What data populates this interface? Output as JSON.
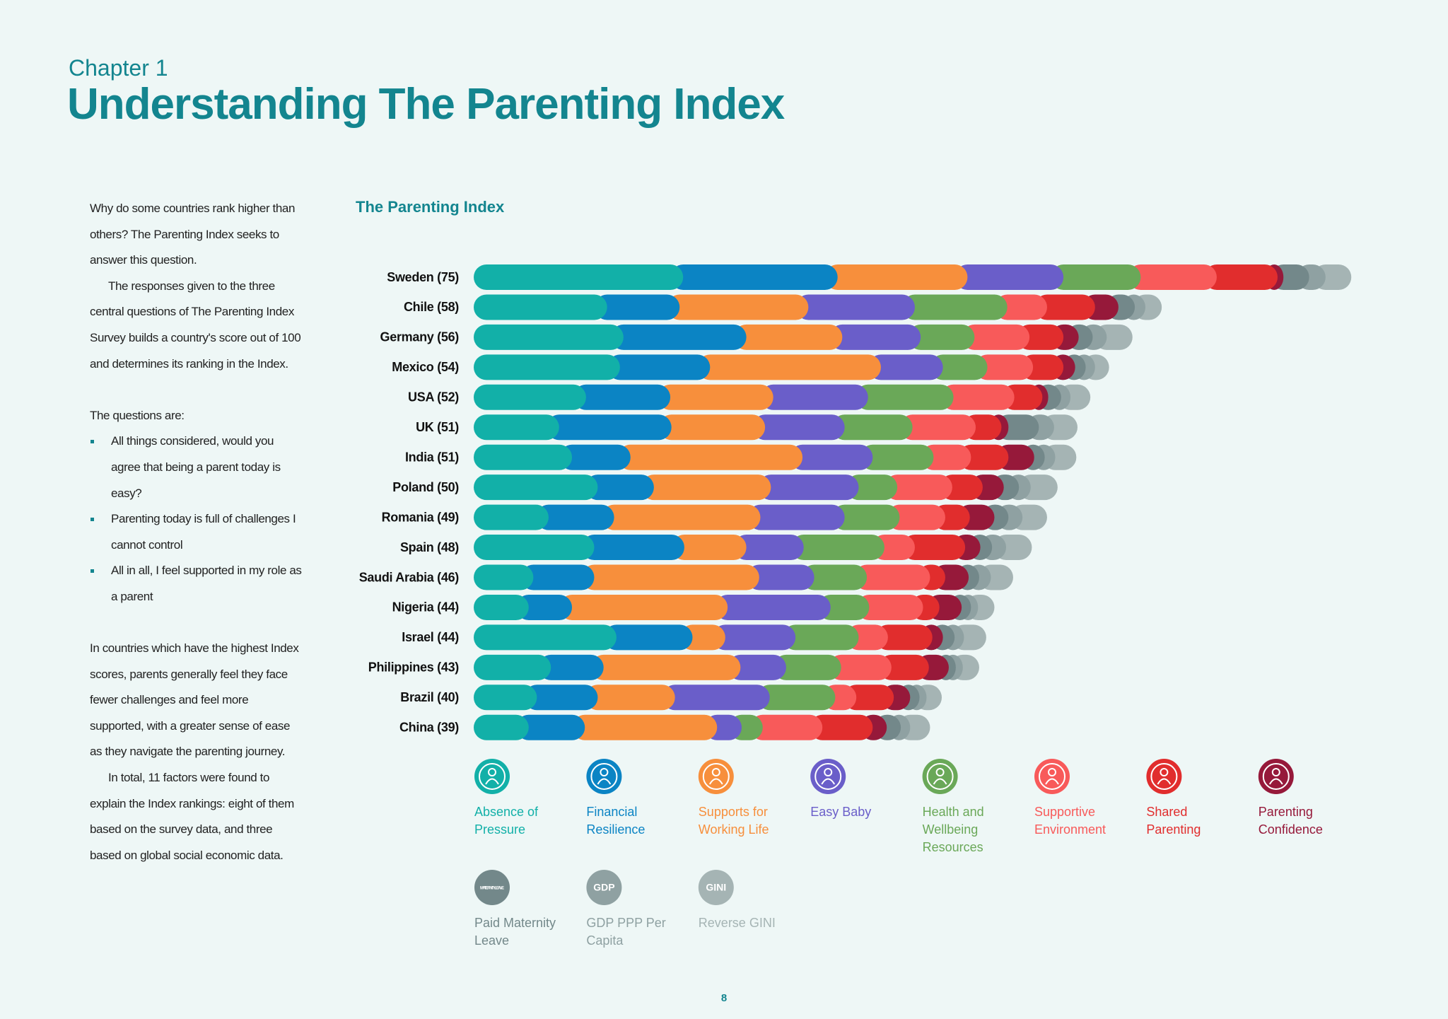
{
  "chapter": "Chapter 1",
  "title": "Understanding The Parenting Index",
  "sidebar": {
    "paragraphs_top": [
      "Why do some countries rank higher than others? The Parenting Index seeks to answer this question.",
      "The responses given to the three central questions of The Parenting Index Survey builds a country's score out of 100 and determines its ranking in the Index."
    ],
    "questions_intro": "The questions are:",
    "questions": [
      "All things considered, would you agree that being a parent today is easy?",
      "Parenting today is full of challenges I cannot control",
      "All in all, I feel supported in my role as a parent"
    ],
    "paragraphs_bottom": [
      "In countries which have the highest Index scores, parents generally feel they face fewer challenges and feel more supported, with a greater sense of ease as they navigate the parenting journey.",
      "In total, 11 factors were found to explain the Index rankings: eight of them based on the survey data, and three based on global social economic data."
    ]
  },
  "chart_data": {
    "type": "bar",
    "orientation": "horizontal",
    "stacked": true,
    "title": "The Parenting Index",
    "categories": [
      "Sweden (75)",
      "Chile (58)",
      "Germany (56)",
      "Mexico (54)",
      "USA (52)",
      "UK (51)",
      "India (51)",
      "Poland (50)",
      "Romania (49)",
      "Spain (48)",
      "Saudi Arabia (46)",
      "Nigeria (44)",
      "Israel (44)",
      "Philippines (43)",
      "Brazil (40)",
      "China (39)"
    ],
    "series": [
      {
        "name": "Absence of Pressure",
        "color": "#12b0a8",
        "values": [
          17.9,
          11.4,
          12.8,
          12.5,
          9.6,
          7.3,
          8.4,
          10.6,
          6.4,
          10.3,
          5.1,
          4.7,
          12.2,
          6.6,
          5.4,
          4.7
        ]
      },
      {
        "name": "Financial Resilience",
        "color": "#0b84c4",
        "values": [
          13.2,
          6.2,
          10.5,
          7.7,
          7.2,
          9.6,
          5.0,
          4.8,
          5.6,
          7.7,
          5.2,
          3.7,
          6.5,
          4.5,
          5.2,
          4.8
        ]
      },
      {
        "name": "Supports for Working Life",
        "color": "#f78f3c",
        "values": [
          11.1,
          11.0,
          8.2,
          14.6,
          8.8,
          8.0,
          14.7,
          10.0,
          12.5,
          5.3,
          14.1,
          13.3,
          2.8,
          11.7,
          6.6,
          11.3
        ]
      },
      {
        "name": "Easy Baby",
        "color": "#6a5ec9",
        "values": [
          8.2,
          9.1,
          6.7,
          5.3,
          8.1,
          6.8,
          6.0,
          7.5,
          7.2,
          4.9,
          4.7,
          8.8,
          6.0,
          3.9,
          8.1,
          2.1
        ]
      },
      {
        "name": "Health and Wellbeing Resources",
        "color": "#6aa858",
        "values": [
          6.6,
          7.9,
          4.6,
          3.8,
          7.3,
          5.8,
          5.2,
          3.3,
          4.7,
          6.9,
          4.5,
          3.3,
          5.4,
          4.7,
          5.6,
          1.8
        ]
      },
      {
        "name": "Supportive Environment",
        "color": "#f85a5a",
        "values": [
          6.5,
          3.4,
          4.7,
          3.9,
          5.2,
          5.4,
          3.2,
          4.7,
          3.9,
          2.6,
          5.4,
          4.6,
          2.5,
          4.3,
          1.8,
          5.1
        ]
      },
      {
        "name": "Shared Parenting",
        "color": "#e12d2d",
        "values": [
          5.2,
          4.1,
          2.9,
          2.6,
          2.4,
          2.2,
          3.2,
          2.6,
          2.1,
          4.3,
          1.3,
          1.4,
          3.8,
          3.2,
          3.2,
          4.3
        ]
      },
      {
        "name": "Parenting Confidence",
        "color": "#96193a",
        "values": [
          0.5,
          2.0,
          1.3,
          1.0,
          0.5,
          0.6,
          2.2,
          1.8,
          2.1,
          1.3,
          2.0,
          1.9,
          0.9,
          1.7,
          1.4,
          1.2
        ]
      },
      {
        "name": "Paid Maternity Leave",
        "color": "#73888a",
        "icon_text": "MATERNITY LEAVE",
        "values": [
          2.2,
          1.4,
          1.2,
          0.9,
          1.1,
          2.6,
          0.9,
          1.3,
          1.2,
          1.0,
          0.9,
          0.8,
          1.0,
          0.6,
          0.8,
          1.2
        ]
      },
      {
        "name": "GDP PPP Per Capita",
        "color": "#8fa1a2",
        "icon_text": "GDP",
        "values": [
          1.4,
          0.9,
          1.2,
          0.8,
          0.8,
          1.3,
          0.9,
          1.0,
          1.2,
          1.2,
          1.0,
          0.6,
          0.8,
          0.6,
          0.6,
          0.8
        ]
      },
      {
        "name": "Reverse GINI",
        "color": "#a5b4b4",
        "icon_text": "GINI",
        "values": [
          2.2,
          1.4,
          2.2,
          1.2,
          1.7,
          2.0,
          1.8,
          2.3,
          2.1,
          2.2,
          1.9,
          1.4,
          1.9,
          1.4,
          1.3,
          1.7
        ]
      }
    ]
  },
  "page_number": "8"
}
